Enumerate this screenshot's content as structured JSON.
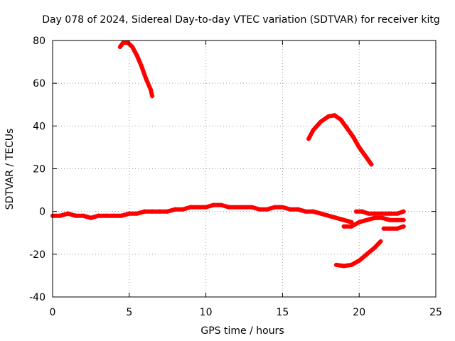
{
  "chart_data": {
    "type": "scatter",
    "title": "Day 078 of 2024, Sidereal Day-to-day VTEC variation (SDTVAR) for receiver kitg",
    "xlabel": "GPS time / hours",
    "ylabel": "SDTVAR / TECUs",
    "xlim": [
      0,
      25
    ],
    "ylim": [
      -40,
      80
    ],
    "xticks": [
      "0",
      "5",
      "10",
      "15",
      "20",
      "25"
    ],
    "yticks": [
      "-40",
      "-20",
      "0",
      "20",
      "40",
      "60",
      "80"
    ],
    "grid": true,
    "color": "#ff0000",
    "series": [
      {
        "name": "arc-1",
        "x": [
          4.4,
          4.6,
          4.9,
          5.2,
          5.5,
          5.8,
          6.1,
          6.4,
          6.5
        ],
        "y": [
          77,
          79,
          79,
          77,
          73,
          68,
          62,
          57,
          54
        ]
      },
      {
        "name": "arc-2",
        "x": [
          0.0,
          0.5,
          1.0,
          1.5,
          2.0,
          2.5,
          3.0,
          3.5,
          4.0,
          4.5,
          5.0,
          5.5,
          6.0,
          6.5,
          7.0,
          7.5,
          8.0,
          8.5,
          9.0,
          9.5,
          10.0,
          10.5,
          11.0,
          11.5,
          12.0,
          12.5,
          13.0,
          13.5,
          14.0,
          14.5,
          15.0,
          15.5,
          16.0,
          16.5,
          17.0,
          17.5,
          18.0,
          18.5,
          19.0,
          19.5
        ],
        "y": [
          -2,
          -2,
          -1,
          -2,
          -2,
          -3,
          -2,
          -2,
          -2,
          -2,
          -1,
          -1,
          0,
          0,
          0,
          0,
          1,
          1,
          2,
          2,
          2,
          3,
          3,
          2,
          2,
          2,
          2,
          1,
          1,
          2,
          2,
          1,
          1,
          0,
          0,
          -1,
          -2,
          -3,
          -4,
          -5
        ]
      },
      {
        "name": "arc-3",
        "x": [
          19.0,
          19.5,
          20.0,
          20.5,
          21.0,
          21.5,
          22.0,
          22.5,
          22.9
        ],
        "y": [
          -7,
          -7,
          -5,
          -4,
          -3,
          -3,
          -4,
          -4,
          -4
        ]
      },
      {
        "name": "arc-4",
        "x": [
          19.8,
          20.2,
          20.6,
          21.0,
          21.5,
          22.0,
          22.5,
          22.9
        ],
        "y": [
          0,
          0,
          -1,
          -1,
          -1,
          -1,
          -1,
          0
        ]
      },
      {
        "name": "arc-5",
        "x": [
          21.6,
          22.0,
          22.5,
          22.9
        ],
        "y": [
          -8,
          -8,
          -8,
          -7
        ]
      },
      {
        "name": "arc-6",
        "x": [
          16.7,
          17.0,
          17.5,
          18.0,
          18.4,
          18.8,
          19.2,
          19.6,
          20.0,
          20.4,
          20.8
        ],
        "y": [
          34,
          38,
          42,
          44.5,
          45,
          43,
          39,
          35,
          30,
          26,
          22
        ]
      },
      {
        "name": "arc-7",
        "x": [
          18.5,
          19.0,
          19.5,
          20.0,
          20.5,
          21.0,
          21.4
        ],
        "y": [
          -25,
          -25.5,
          -25,
          -23,
          -20,
          -17,
          -14
        ]
      }
    ]
  }
}
